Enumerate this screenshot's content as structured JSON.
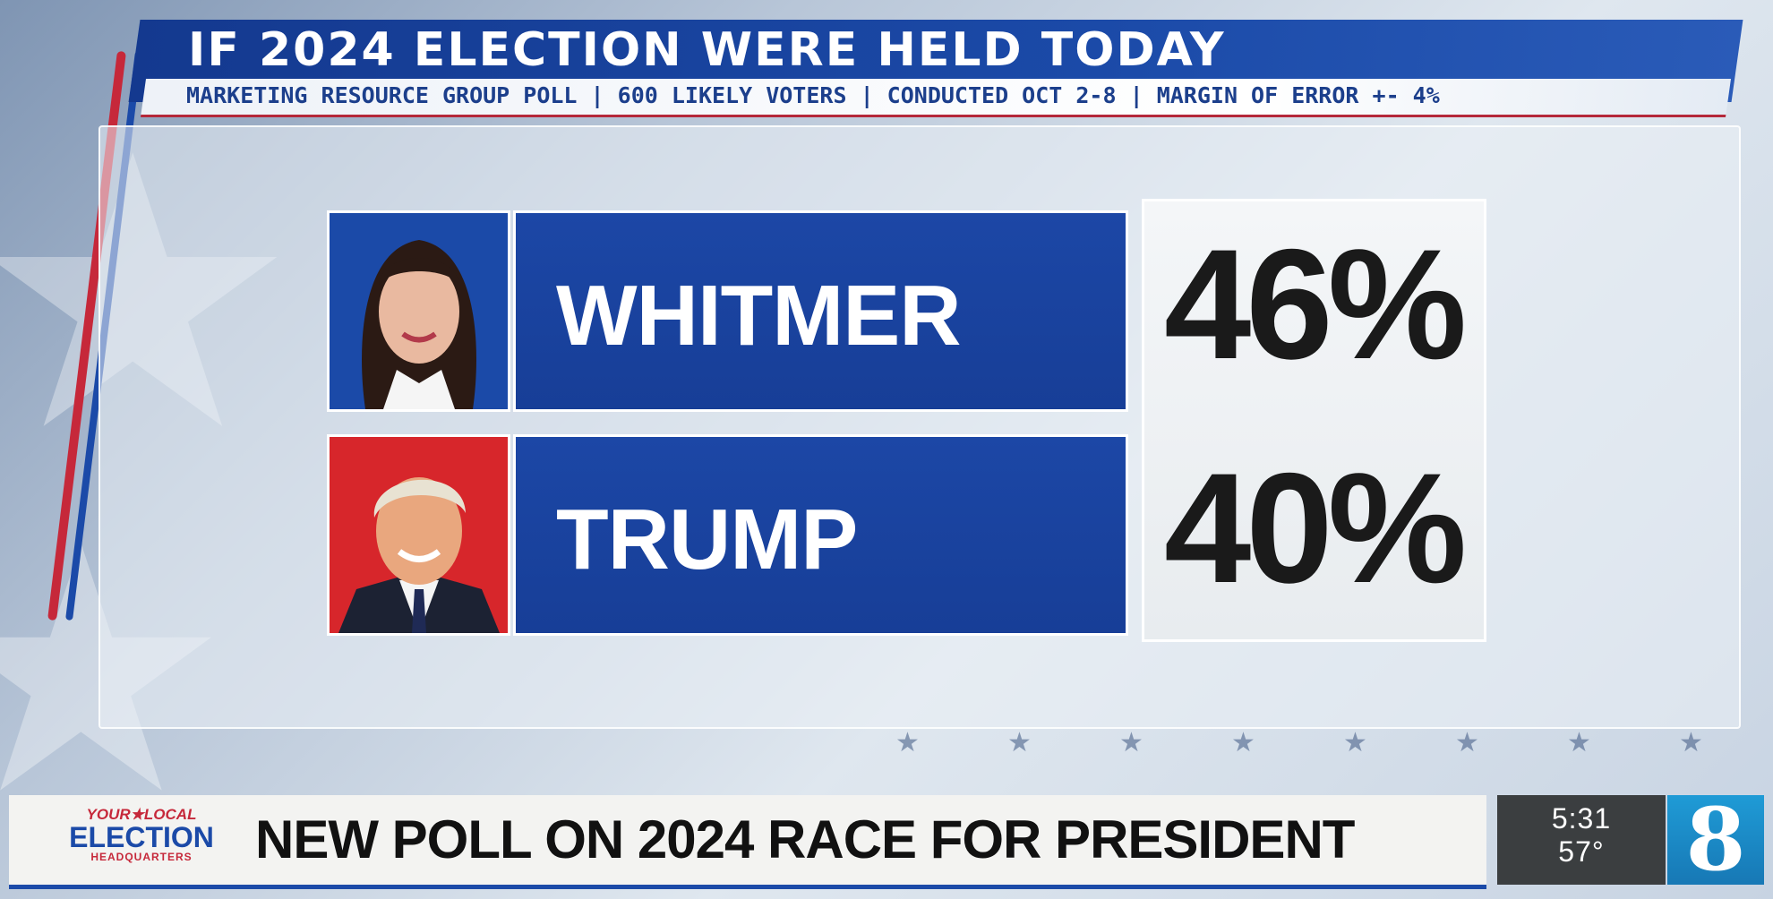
{
  "header": {
    "title": "IF 2024 ELECTION WERE HELD TODAY",
    "subtitle": "MARKETING RESOURCE GROUP POLL | 600 LIKELY VOTERS | CONDUCTED OCT 2-8 | MARGIN OF ERROR +- 4%"
  },
  "candidates": [
    {
      "name": "WHITMER",
      "percent": "46%",
      "portrait_icon": "whitmer-portrait-icon"
    },
    {
      "name": "TRUMP",
      "percent": "40%",
      "portrait_icon": "trump-portrait-icon"
    }
  ],
  "ticker": {
    "logo_top": "YOUR★LOCAL",
    "logo_mid": "ELECTION",
    "logo_bot": "HEADQUARTERS",
    "headline": "NEW POLL ON 2024 RACE FOR PRESIDENT",
    "time": "5:31",
    "temperature": "57°",
    "station": "8"
  },
  "colors": {
    "navy": "#1b4aa8",
    "red": "#c6283a",
    "ticker_bg": "#f3f3f1",
    "station_blue": "#1f9bd6"
  }
}
